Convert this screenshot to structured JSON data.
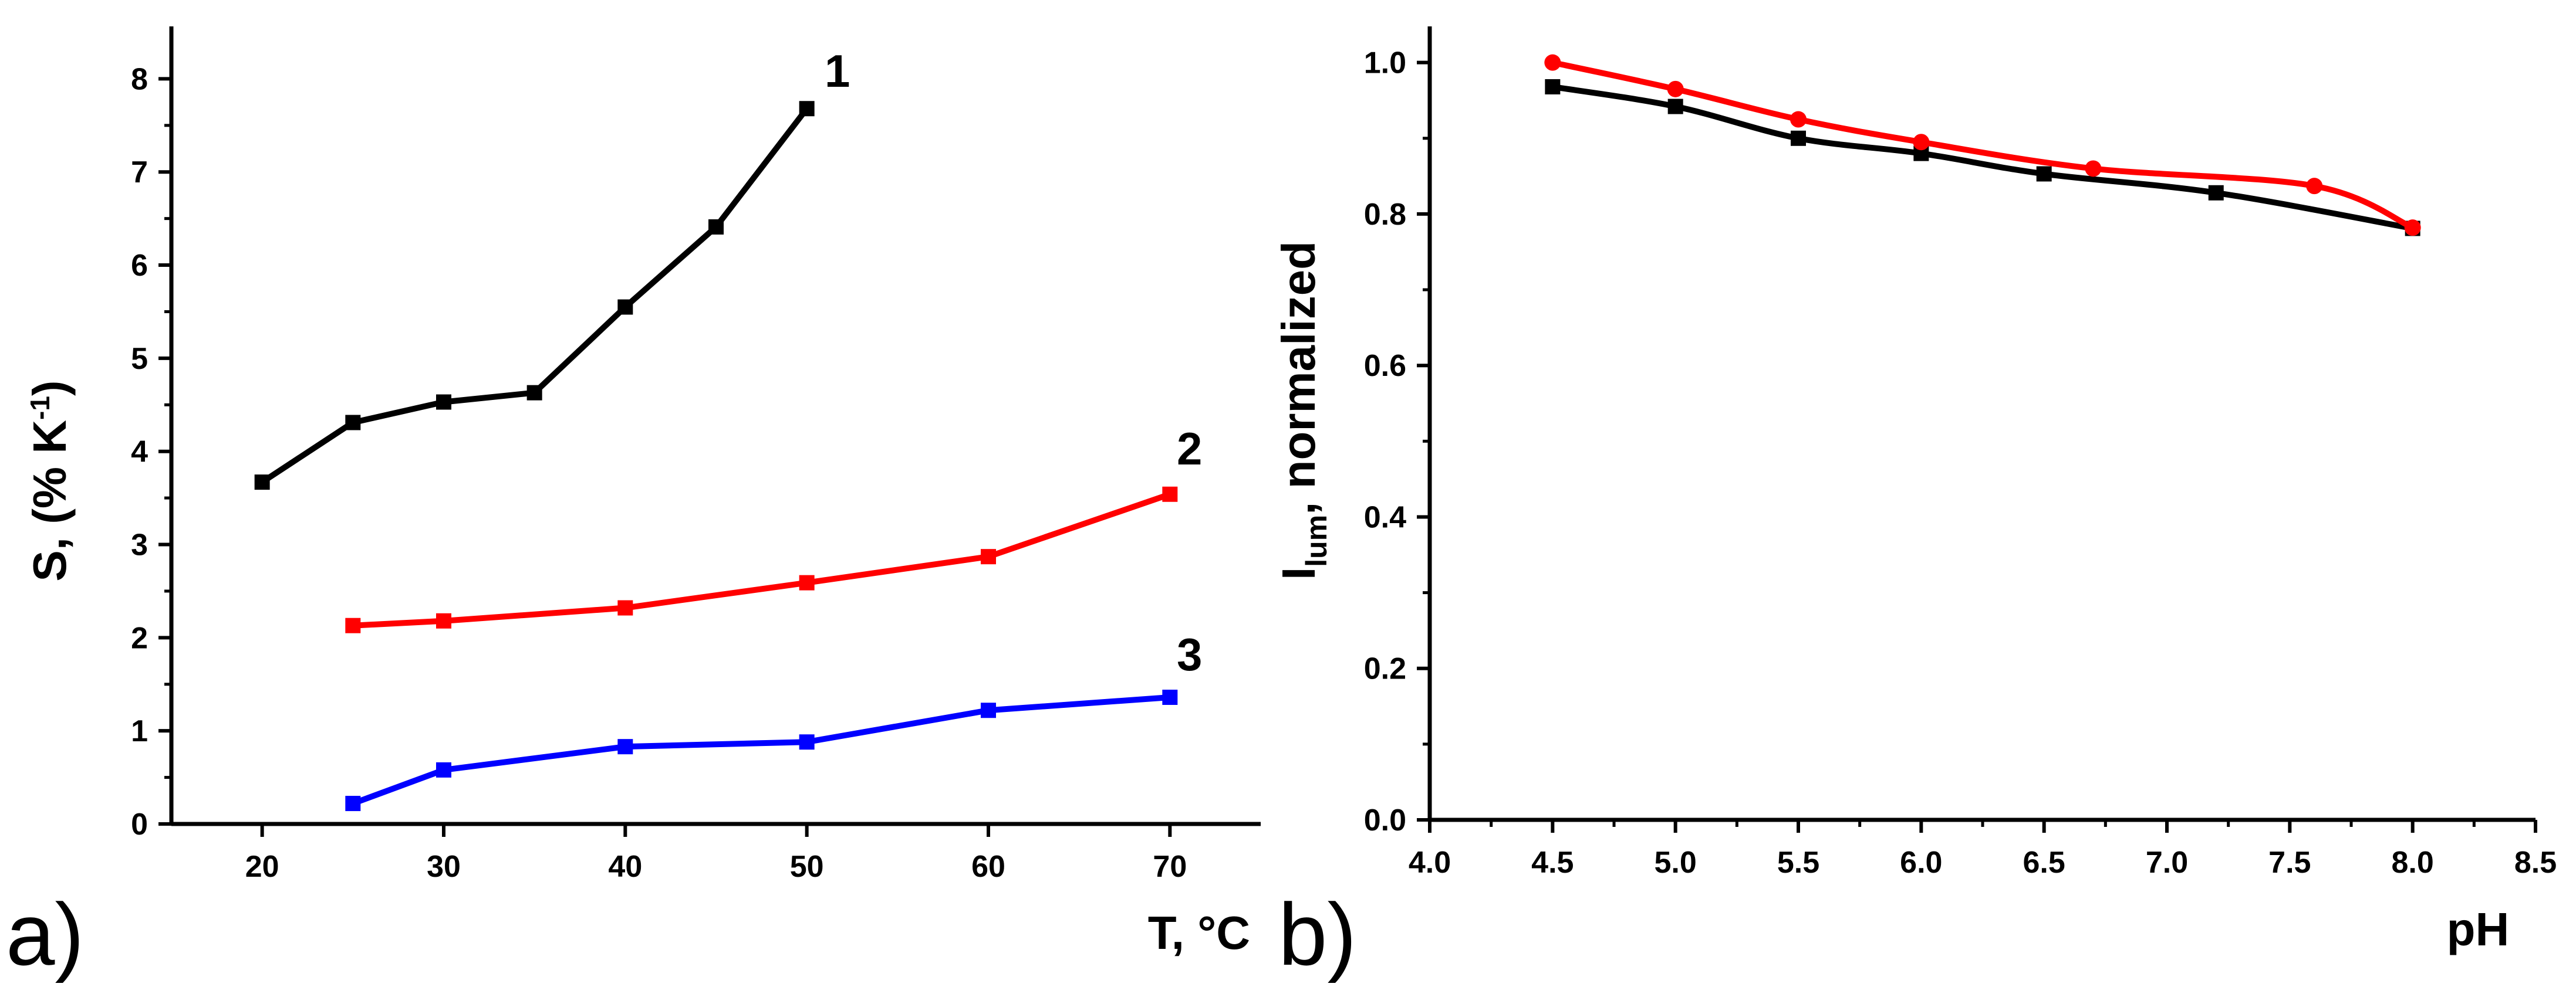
{
  "chart_data": [
    {
      "panel": "a)",
      "type": "line",
      "xlabel": "T, °C",
      "ylabel": "S, (% K⁻¹)",
      "xlim": [
        15,
        75
      ],
      "ylim": [
        0,
        8.5
      ],
      "xticks": [
        20,
        30,
        40,
        50,
        60,
        70
      ],
      "yticks": [
        0,
        1,
        2,
        3,
        4,
        5,
        6,
        7,
        8
      ],
      "series": [
        {
          "name": "1",
          "color": "#000000",
          "marker": "square",
          "x": [
            20,
            25,
            30,
            35,
            40,
            45,
            50
          ],
          "y": [
            3.67,
            4.31,
            4.53,
            4.63,
            5.55,
            6.41,
            7.68
          ]
        },
        {
          "name": "2",
          "color": "#ff0000",
          "marker": "square",
          "x": [
            25,
            30,
            40,
            50,
            60,
            70
          ],
          "y": [
            2.13,
            2.18,
            2.32,
            2.59,
            2.87,
            3.54
          ]
        },
        {
          "name": "3",
          "color": "#0000ff",
          "marker": "square",
          "x": [
            25,
            30,
            40,
            50,
            60,
            70
          ],
          "y": [
            0.22,
            0.58,
            0.83,
            0.88,
            1.22,
            1.36
          ]
        }
      ]
    },
    {
      "panel": "b)",
      "type": "line",
      "xlabel": "pH",
      "ylabel_main": "I",
      "ylabel_sub": "lum",
      "ylabel_rest": ", normalized",
      "xlim": [
        4.0,
        8.5
      ],
      "ylim": [
        0.0,
        1.04
      ],
      "xticks": [
        "4.0",
        "4.5",
        "5.0",
        "5.5",
        "6.0",
        "6.5",
        "7.0",
        "7.5",
        "8.0",
        "8.5"
      ],
      "yticks": [
        "0.0",
        "0.2",
        "0.4",
        "0.6",
        "0.8",
        "1.0"
      ],
      "series": [
        {
          "name": "black",
          "color": "#000000",
          "marker": "square",
          "x": [
            4.5,
            5.0,
            5.5,
            6.0,
            6.5,
            7.2,
            8.0
          ],
          "y": [
            0.968,
            0.942,
            0.9,
            0.88,
            0.853,
            0.828,
            0.781
          ]
        },
        {
          "name": "red",
          "color": "#ff0000",
          "marker": "circle",
          "x": [
            4.5,
            5.0,
            5.5,
            6.0,
            6.7,
            7.6,
            8.0
          ],
          "y": [
            1.0,
            0.965,
            0.925,
            0.895,
            0.86,
            0.837,
            0.782
          ]
        }
      ]
    }
  ]
}
